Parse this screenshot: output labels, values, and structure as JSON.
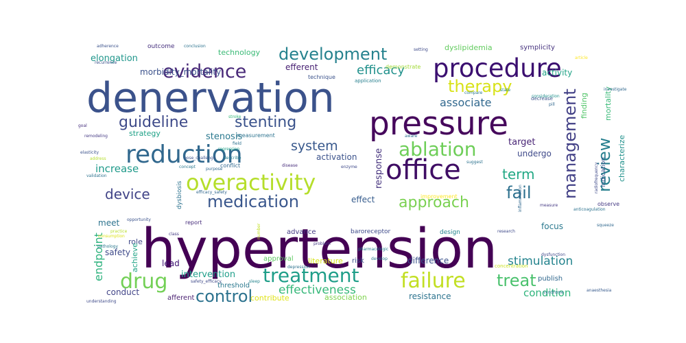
{
  "words": [
    {
      "text": "hypertension",
      "color": "#440154"
    },
    {
      "text": "denervation",
      "color": "#3b528b"
    },
    {
      "text": "pressure",
      "color": "#46085c"
    },
    {
      "text": "procedure",
      "color": "#3b0f70"
    },
    {
      "text": "reduction",
      "color": "#31688e"
    },
    {
      "text": "office",
      "color": "#3f0d64"
    },
    {
      "text": "overactivity",
      "color": "#b5de2b"
    },
    {
      "text": "evidence",
      "color": "#482878"
    },
    {
      "text": "development",
      "color": "#26828e"
    },
    {
      "text": "ablation",
      "color": "#6ece58"
    },
    {
      "text": "failure",
      "color": "#c2df23"
    },
    {
      "text": "treatment",
      "color": "#1f9e89"
    },
    {
      "text": "medication",
      "color": "#39568c"
    },
    {
      "text": "drug",
      "color": "#73d056"
    },
    {
      "text": "approach",
      "color": "#7ad151"
    },
    {
      "text": "therapy",
      "color": "#d8e219"
    },
    {
      "text": "system",
      "color": "#38588c"
    },
    {
      "text": "stenting",
      "color": "#3a528b"
    },
    {
      "text": "guideline",
      "color": "#3e4a89"
    },
    {
      "text": "management",
      "color": "#424086"
    },
    {
      "text": "review",
      "color": "#277f8e"
    },
    {
      "text": "control",
      "color": "#2c728e"
    },
    {
      "text": "effectiveness",
      "color": "#35b779"
    },
    {
      "text": "treat",
      "color": "#4ac16d"
    },
    {
      "text": "device",
      "color": "#414487"
    },
    {
      "text": "fail",
      "color": "#2d708e"
    },
    {
      "text": "term",
      "color": "#22a884"
    },
    {
      "text": "efficacy",
      "color": "#21918c"
    },
    {
      "text": "stimulation",
      "color": "#25848e"
    },
    {
      "text": "endpoint",
      "color": "#2db27d"
    },
    {
      "text": "increase",
      "color": "#1f9a8a"
    },
    {
      "text": "associate",
      "color": "#31688e"
    },
    {
      "text": "condition",
      "color": "#2fb47c"
    },
    {
      "text": "elongation",
      "color": "#1f968b"
    },
    {
      "text": "morbidity_mortality",
      "color": "#3b528b"
    },
    {
      "text": "efferent",
      "color": "#482173"
    },
    {
      "text": "activity",
      "color": "#20a386"
    },
    {
      "text": "stenosis",
      "color": "#2a788e"
    },
    {
      "text": "target",
      "color": "#482475"
    },
    {
      "text": "undergo",
      "color": "#3e4989"
    },
    {
      "text": "activation",
      "color": "#3b528b"
    },
    {
      "text": "response",
      "color": "#46337e"
    },
    {
      "text": "characterize",
      "color": "#21918c"
    },
    {
      "text": "mortality",
      "color": "#38b977"
    },
    {
      "text": "finding",
      "color": "#52c569"
    },
    {
      "text": "effect",
      "color": "#365c8d"
    },
    {
      "text": "safety",
      "color": "#3e4989"
    },
    {
      "text": "lead",
      "color": "#3b0f70"
    },
    {
      "text": "meet",
      "color": "#2c738e"
    },
    {
      "text": "strategy",
      "color": "#1fa187"
    },
    {
      "text": "role",
      "color": "#3f4788"
    },
    {
      "text": "achieve",
      "color": "#20a486"
    },
    {
      "text": "focus",
      "color": "#2a788e"
    },
    {
      "text": "difference",
      "color": "#3b528b"
    },
    {
      "text": "intervention",
      "color": "#1f9e89"
    },
    {
      "text": "conduct",
      "color": "#414487"
    },
    {
      "text": "resistance",
      "color": "#2c738e"
    },
    {
      "text": "literature",
      "color": "#d5e21a"
    },
    {
      "text": "approval",
      "color": "#5ec962"
    },
    {
      "text": "risk",
      "color": "#3b528b"
    },
    {
      "text": "publish",
      "color": "#31688e"
    },
    {
      "text": "threshold",
      "color": "#2a788e"
    },
    {
      "text": "advance",
      "color": "#443983"
    },
    {
      "text": "baroreceptor",
      "color": "#3e4a89"
    },
    {
      "text": "measurement",
      "color": "#2c728e"
    },
    {
      "text": "technology",
      "color": "#3aba76"
    },
    {
      "text": "dyslipidemia",
      "color": "#63cb5f"
    },
    {
      "text": "symplicity",
      "color": "#46337e"
    },
    {
      "text": "outcome",
      "color": "#46307e"
    },
    {
      "text": "demonstrate",
      "color": "#a2da37"
    },
    {
      "text": "dysbiosis",
      "color": "#2c728e"
    },
    {
      "text": "indication",
      "color": "#3b528b"
    },
    {
      "text": "observe",
      "color": "#443983"
    },
    {
      "text": "contribute",
      "color": "#dfe318"
    },
    {
      "text": "association",
      "color": "#7fd34e"
    },
    {
      "text": "afferent",
      "color": "#481f70"
    },
    {
      "text": "design",
      "color": "#25858e"
    },
    {
      "text": "report",
      "color": "#472d7b"
    },
    {
      "text": "technique",
      "color": "#3b528b"
    },
    {
      "text": "conflict",
      "color": "#31688e"
    },
    {
      "text": "improvement",
      "color": "#fde725"
    },
    {
      "text": "application",
      "color": "#277f8e"
    },
    {
      "text": "concentration",
      "color": "#c8e020"
    },
    {
      "text": "dysfunction",
      "color": "#3f4788"
    },
    {
      "text": "anaesthesia",
      "color": "#375a8c"
    },
    {
      "text": "understanding",
      "color": "#3e4a89"
    },
    {
      "text": "pathology",
      "color": "#2a788e"
    },
    {
      "text": "remodeling",
      "color": "#443983"
    },
    {
      "text": "elasticity",
      "color": "#3b528b"
    },
    {
      "text": "goal",
      "color": "#46307e"
    },
    {
      "text": "field",
      "color": "#2c728e"
    },
    {
      "text": "stroke",
      "color": "#35b779"
    },
    {
      "text": "suggest",
      "color": "#2c728e"
    },
    {
      "text": "enzyme",
      "color": "#3e4989"
    },
    {
      "text": "disease",
      "color": "#472d7b"
    },
    {
      "text": "pill",
      "color": "#31688e"
    },
    {
      "text": "decrease",
      "color": "#3b528b"
    },
    {
      "text": "compare",
      "color": "#2a788e"
    },
    {
      "text": "state",
      "color": "#25848e"
    },
    {
      "text": "consideration",
      "color": "#21918c"
    },
    {
      "text": "research",
      "color": "#3e4989"
    },
    {
      "text": "syndrome",
      "color": "#2c728e"
    },
    {
      "text": "measure",
      "color": "#443983"
    },
    {
      "text": "practice",
      "color": "#b8de29"
    },
    {
      "text": "consumption",
      "color": "#dde318"
    },
    {
      "text": "pharmacologic",
      "color": "#277f8e"
    },
    {
      "text": "develop",
      "color": "#2a788e"
    },
    {
      "text": "problem",
      "color": "#443983"
    },
    {
      "text": "adherence",
      "color": "#3b528b"
    },
    {
      "text": "conclusion",
      "color": "#2c728e"
    },
    {
      "text": "setting",
      "color": "#3e4a89"
    },
    {
      "text": "article",
      "color": "#fde725"
    },
    {
      "text": "investigate",
      "color": "#31688e"
    },
    {
      "text": "anticoagulation",
      "color": "#2c728e"
    },
    {
      "text": "pose_challenge",
      "color": "#3b528b"
    },
    {
      "text": "efficacy_safety",
      "color": "#31688e"
    },
    {
      "text": "safety_efficacy",
      "color": "#3e4989"
    },
    {
      "text": "depression",
      "color": "#2c728e"
    },
    {
      "text": "sleep",
      "color": "#25848e"
    },
    {
      "text": "regression",
      "color": "#1fa187"
    },
    {
      "text": "class",
      "color": "#443983"
    },
    {
      "text": "number",
      "color": "#c2df23"
    },
    {
      "text": "concept",
      "color": "#2a788e"
    },
    {
      "text": "opportunity",
      "color": "#3b528b"
    },
    {
      "text": "validation",
      "color": "#2c728e"
    },
    {
      "text": "describe",
      "color": "#277f8e"
    },
    {
      "text": "purpose",
      "color": "#31688e"
    },
    {
      "text": "recurrence",
      "color": "#3b528b"
    },
    {
      "text": "inflammation",
      "color": "#31688e"
    },
    {
      "text": "aware",
      "color": "#2c728e"
    },
    {
      "text": "address",
      "color": "#b5de2b"
    },
    {
      "text": "radiofrequency",
      "color": "#3e4989"
    },
    {
      "text": "squeeze",
      "color": "#31688e"
    }
  ]
}
